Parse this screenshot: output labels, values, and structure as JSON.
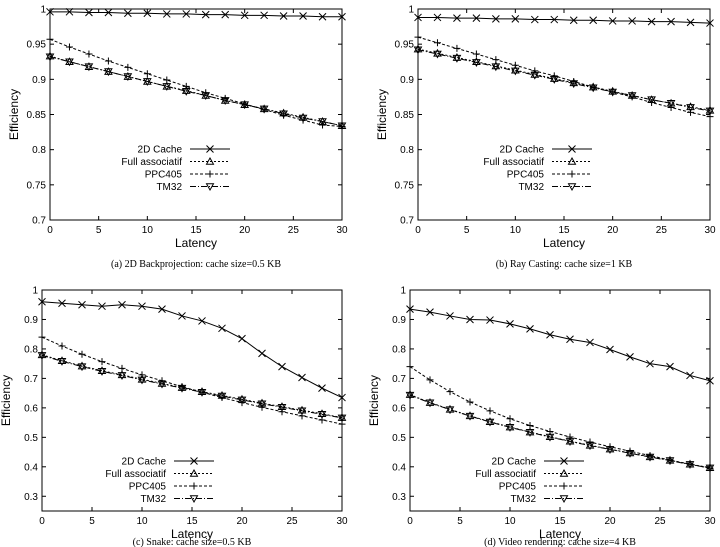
{
  "chart_data": [
    {
      "type": "line",
      "caption": "(a) 2D Backprojection: cache size=0.5 KB",
      "xlabel": "Latency",
      "ylabel": "Efficiency",
      "xlim": [
        0,
        30
      ],
      "ylim": [
        0.7,
        1
      ],
      "xticks": [
        0,
        5,
        10,
        15,
        20,
        25,
        30
      ],
      "yticks": [
        0.7,
        0.75,
        0.8,
        0.85,
        0.9,
        0.95,
        1
      ],
      "ytick_labels": [
        "0.7",
        "0.75",
        "0.8",
        "0.85",
        "0.9",
        "0.95",
        "1"
      ],
      "legend_position": "lower-center",
      "x": [
        0,
        2,
        4,
        6,
        8,
        10,
        12,
        14,
        16,
        18,
        20,
        22,
        24,
        26,
        28,
        30
      ],
      "series": [
        {
          "name": "2D Cache",
          "marker": "x",
          "dash": "",
          "values": [
            0.996,
            0.996,
            0.995,
            0.995,
            0.994,
            0.994,
            0.993,
            0.993,
            0.992,
            0.992,
            0.991,
            0.991,
            0.99,
            0.99,
            0.989,
            0.989
          ]
        },
        {
          "name": "Full associatif",
          "marker": "triangle-up",
          "dash": "2,2",
          "values": [
            0.933,
            0.925,
            0.918,
            0.911,
            0.904,
            0.897,
            0.89,
            0.884,
            0.877,
            0.87,
            0.864,
            0.858,
            0.852,
            0.846,
            0.84,
            0.834
          ]
        },
        {
          "name": "PPC405",
          "marker": "plus",
          "dash": "3,2",
          "values": [
            0.957,
            0.946,
            0.936,
            0.926,
            0.917,
            0.908,
            0.899,
            0.89,
            0.881,
            0.873,
            0.865,
            0.857,
            0.849,
            0.842,
            0.835,
            0.833
          ]
        },
        {
          "name": "TM32",
          "marker": "triangle-down",
          "dash": "6,2,1,2",
          "values": [
            0.932,
            0.925,
            0.918,
            0.911,
            0.904,
            0.897,
            0.89,
            0.883,
            0.877,
            0.87,
            0.864,
            0.858,
            0.851,
            0.845,
            0.84,
            0.834
          ]
        }
      ]
    },
    {
      "type": "line",
      "caption": "(b) Ray Casting: cache size=1 KB",
      "xlabel": "Latency",
      "ylabel": "Efficiency",
      "xlim": [
        0,
        30
      ],
      "ylim": [
        0.7,
        1
      ],
      "xticks": [
        0,
        5,
        10,
        15,
        20,
        25,
        30
      ],
      "yticks": [
        0.7,
        0.75,
        0.8,
        0.85,
        0.9,
        0.95,
        1
      ],
      "ytick_labels": [
        "0.7",
        "0.75",
        "0.8",
        "0.85",
        "0.9",
        "0.95",
        "1"
      ],
      "legend_position": "lower-center",
      "x": [
        0,
        2,
        4,
        6,
        8,
        10,
        12,
        14,
        16,
        18,
        20,
        22,
        24,
        26,
        28,
        30
      ],
      "series": [
        {
          "name": "2D Cache",
          "marker": "x",
          "dash": "",
          "values": [
            0.988,
            0.988,
            0.987,
            0.987,
            0.986,
            0.986,
            0.985,
            0.985,
            0.984,
            0.984,
            0.983,
            0.983,
            0.982,
            0.982,
            0.981,
            0.98
          ]
        },
        {
          "name": "Full associatif",
          "marker": "triangle-up",
          "dash": "2,2",
          "values": [
            0.943,
            0.937,
            0.931,
            0.925,
            0.919,
            0.913,
            0.907,
            0.901,
            0.895,
            0.889,
            0.883,
            0.877,
            0.871,
            0.866,
            0.861,
            0.856
          ]
        },
        {
          "name": "PPC405",
          "marker": "plus",
          "dash": "3,2",
          "values": [
            0.96,
            0.952,
            0.944,
            0.936,
            0.928,
            0.92,
            0.912,
            0.905,
            0.897,
            0.889,
            0.882,
            0.875,
            0.867,
            0.86,
            0.853,
            0.847
          ]
        },
        {
          "name": "TM32",
          "marker": "triangle-down",
          "dash": "6,2,1,2",
          "values": [
            0.942,
            0.936,
            0.93,
            0.924,
            0.918,
            0.912,
            0.906,
            0.9,
            0.894,
            0.888,
            0.882,
            0.877,
            0.871,
            0.866,
            0.86,
            0.855
          ]
        }
      ]
    },
    {
      "type": "line",
      "caption": "(c) Snake: cache size=0.5 KB",
      "xlabel": "Latency",
      "ylabel": "Efficiency",
      "xlim": [
        0,
        30
      ],
      "ylim": [
        0.25,
        1
      ],
      "xticks": [
        0,
        5,
        10,
        15,
        20,
        25,
        30
      ],
      "yticks": [
        0.3,
        0.4,
        0.5,
        0.6,
        0.7,
        0.8,
        0.9,
        1
      ],
      "ytick_labels": [
        "0.3",
        "0.4",
        "0.5",
        "0.6",
        "0.7",
        "0.8",
        "0.9",
        "1"
      ],
      "legend_position": "lower-left",
      "x": [
        0,
        2,
        4,
        6,
        8,
        10,
        12,
        14,
        16,
        18,
        20,
        22,
        24,
        26,
        28,
        30
      ],
      "series": [
        {
          "name": "2D Cache",
          "marker": "x",
          "dash": "",
          "values": [
            0.96,
            0.955,
            0.95,
            0.945,
            0.95,
            0.945,
            0.935,
            0.912,
            0.895,
            0.87,
            0.835,
            0.785,
            0.74,
            0.703,
            0.667,
            0.635
          ]
        },
        {
          "name": "Full associatif",
          "marker": "triangle-up",
          "dash": "2,2",
          "values": [
            0.78,
            0.76,
            0.742,
            0.726,
            0.712,
            0.697,
            0.683,
            0.669,
            0.655,
            0.642,
            0.629,
            0.616,
            0.604,
            0.592,
            0.58,
            0.567
          ]
        },
        {
          "name": "PPC405",
          "marker": "plus",
          "dash": "3,2",
          "values": [
            0.84,
            0.81,
            0.782,
            0.757,
            0.734,
            0.712,
            0.692,
            0.672,
            0.653,
            0.635,
            0.618,
            0.602,
            0.587,
            0.573,
            0.559,
            0.545
          ]
        },
        {
          "name": "TM32",
          "marker": "triangle-down",
          "dash": "6,2,1,2",
          "values": [
            0.778,
            0.758,
            0.74,
            0.724,
            0.71,
            0.695,
            0.681,
            0.667,
            0.653,
            0.64,
            0.627,
            0.614,
            0.602,
            0.59,
            0.578,
            0.566
          ]
        }
      ]
    },
    {
      "type": "line",
      "caption": "(d) Video rendering: cache size=4 KB",
      "xlabel": "Latency",
      "ylabel": "Efficiency",
      "xlim": [
        0,
        30
      ],
      "ylim": [
        0.25,
        1
      ],
      "xticks": [
        0,
        5,
        10,
        15,
        20,
        25,
        30
      ],
      "yticks": [
        0.3,
        0.4,
        0.5,
        0.6,
        0.7,
        0.8,
        0.9,
        1
      ],
      "ytick_labels": [
        "0.3",
        "0.4",
        "0.5",
        "0.6",
        "0.7",
        "0.8",
        "0.9",
        "1"
      ],
      "legend_position": "lower-center",
      "x": [
        0,
        2,
        4,
        6,
        8,
        10,
        12,
        14,
        16,
        18,
        20,
        22,
        24,
        26,
        28,
        30
      ],
      "series": [
        {
          "name": "2D Cache",
          "marker": "x",
          "dash": "",
          "values": [
            0.935,
            0.925,
            0.912,
            0.9,
            0.898,
            0.885,
            0.868,
            0.848,
            0.833,
            0.822,
            0.798,
            0.773,
            0.75,
            0.74,
            0.71,
            0.692
          ]
        },
        {
          "name": "Full associatif",
          "marker": "triangle-up",
          "dash": "2,2",
          "values": [
            0.645,
            0.618,
            0.595,
            0.573,
            0.553,
            0.535,
            0.518,
            0.502,
            0.487,
            0.473,
            0.46,
            0.447,
            0.434,
            0.422,
            0.409,
            0.397
          ]
        },
        {
          "name": "PPC405",
          "marker": "plus",
          "dash": "3,2",
          "values": [
            0.74,
            0.695,
            0.655,
            0.62,
            0.59,
            0.563,
            0.54,
            0.52,
            0.501,
            0.484,
            0.468,
            0.453,
            0.438,
            0.423,
            0.409,
            0.395
          ]
        },
        {
          "name": "TM32",
          "marker": "triangle-down",
          "dash": "6,2,1,2",
          "values": [
            0.643,
            0.617,
            0.594,
            0.572,
            0.552,
            0.534,
            0.517,
            0.501,
            0.486,
            0.472,
            0.459,
            0.446,
            0.433,
            0.421,
            0.408,
            0.396
          ]
        }
      ]
    }
  ]
}
